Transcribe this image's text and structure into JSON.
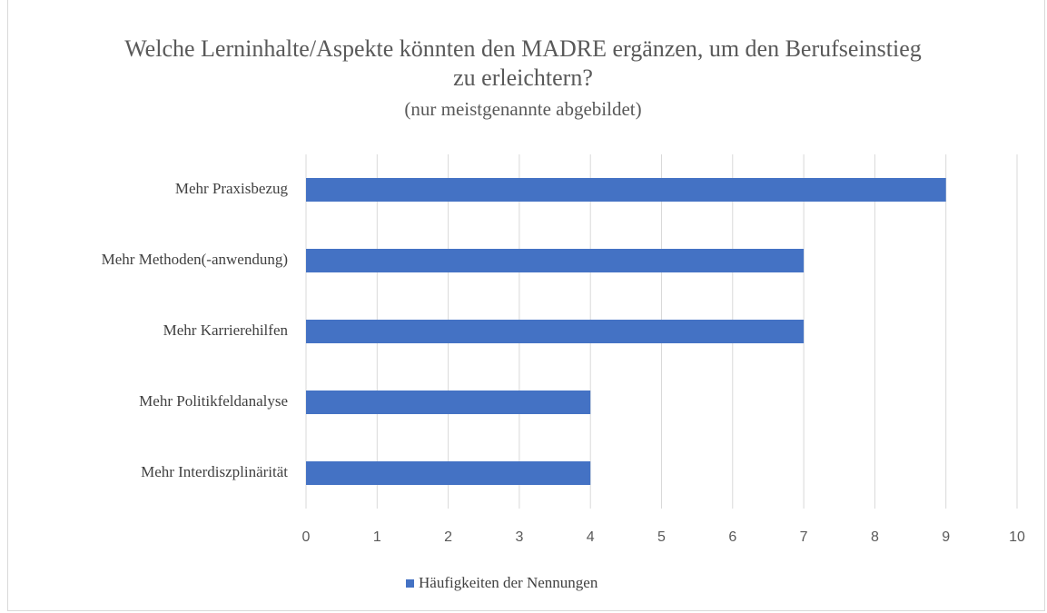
{
  "chart_data": {
    "type": "hbar",
    "title": "Welche Lerninhalte/Aspekte könnten den MADRE ergänzen, um den Berufseinstieg zu erleichtern?",
    "subtitle": "(nur meistgenannte abgebildet)",
    "categories": [
      "Mehr Praxisbezug",
      "Mehr Methoden(-anwendung)",
      "Mehr Karrierehilfen",
      "Mehr Politikfeldanalyse",
      "Mehr Interdiszplinärität"
    ],
    "series": [
      {
        "name": "Häufigkeiten der Nennungen",
        "color": "#4472c4",
        "values": [
          9,
          7,
          7,
          4,
          4
        ]
      }
    ],
    "xlim": [
      0,
      10
    ],
    "xticks": [
      0,
      1,
      2,
      3,
      4,
      5,
      6,
      7,
      8,
      9,
      10
    ],
    "grid": true,
    "legend": "bottom"
  }
}
